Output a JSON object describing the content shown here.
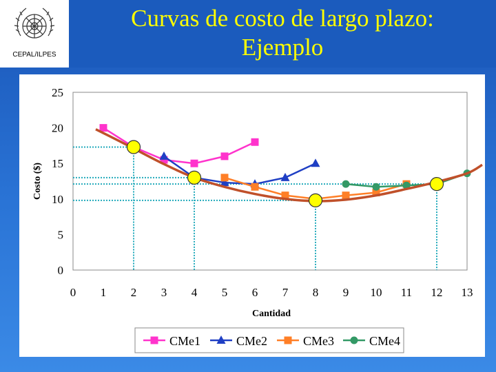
{
  "header": {
    "org_caption": "CEPAL/ILPES",
    "title_line1": "Curvas de costo de largo plazo:",
    "title_line2": "Ejemplo",
    "logo_icon": "un-emblem-icon"
  },
  "colors": {
    "title": "#ffff00",
    "background": "#1b5bbd",
    "envelope": "#c0502a",
    "cme1": "#ff33cc",
    "cme2": "#1f3fc4",
    "cme3": "#ff7f27",
    "cme4": "#339966",
    "guides": "#22aabb",
    "highlight": "#ffff00"
  },
  "chart_data": {
    "type": "line",
    "xlabel": "Cantidad",
    "ylabel": "Costo ($)",
    "xlim": [
      0,
      13
    ],
    "ylim": [
      0,
      25
    ],
    "xticks": [
      0,
      1,
      2,
      3,
      4,
      5,
      6,
      7,
      8,
      9,
      10,
      11,
      12,
      13
    ],
    "yticks": [
      0,
      5,
      10,
      15,
      20,
      25
    ],
    "grid": false,
    "legend_position": "bottom",
    "series": [
      {
        "name": "CMe1",
        "marker": "square",
        "x": [
          1,
          2,
          3,
          4,
          5,
          6
        ],
        "y": [
          20,
          17.3,
          15.5,
          15,
          16,
          18
        ]
      },
      {
        "name": "CMe2",
        "marker": "triangle",
        "x": [
          3,
          4,
          5,
          6,
          7,
          8
        ],
        "y": [
          16,
          13,
          12.3,
          12.1,
          13,
          15
        ]
      },
      {
        "name": "CMe3",
        "marker": "square",
        "x": [
          5,
          6,
          7,
          8,
          9,
          10,
          11
        ],
        "y": [
          13,
          11.7,
          10.5,
          10,
          10.5,
          10.9,
          12.1
        ]
      },
      {
        "name": "CMe4",
        "marker": "circle",
        "x": [
          9,
          10,
          11,
          12,
          13
        ],
        "y": [
          12.1,
          11.7,
          11.9,
          12.1,
          13.6
        ]
      }
    ],
    "envelope": {
      "x": [
        0.75,
        1.5,
        2,
        3,
        4,
        5,
        6,
        7,
        8,
        9,
        10,
        11,
        12,
        13,
        13.5
      ],
      "y": [
        19.8,
        18.2,
        17.1,
        14.9,
        13.0,
        11.7,
        10.7,
        10.0,
        9.7,
        9.9,
        10.5,
        11.4,
        12.4,
        13.6,
        14.8
      ]
    },
    "tangency_points": [
      {
        "x": 2,
        "y": 17.3
      },
      {
        "x": 4,
        "y": 13
      },
      {
        "x": 8,
        "y": 9.8
      },
      {
        "x": 12,
        "y": 12.1
      }
    ]
  }
}
